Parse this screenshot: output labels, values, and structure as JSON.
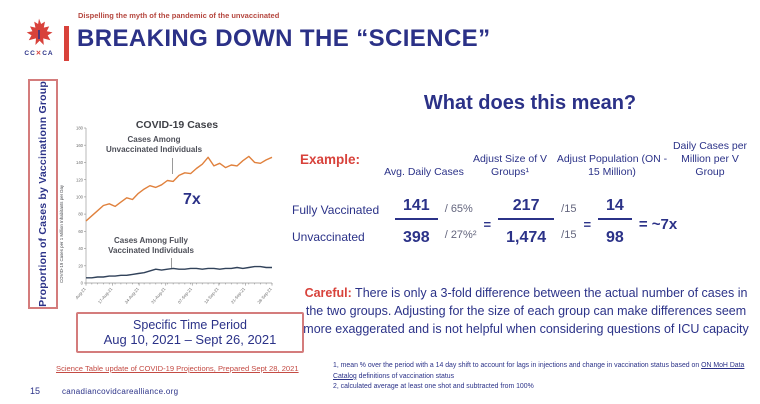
{
  "slide": {
    "tagline": "Dispelling the myth of the pandemic of the unvaccinated",
    "title": "BREAKING DOWN THE “SCIENCE”",
    "page_number": "15",
    "footer_url": "canadiancovidcarealliance.org"
  },
  "logo": {
    "text_left": "CC",
    "text_x": "✕",
    "text_right": "CA"
  },
  "left_panel": {
    "side_label": "Proportion of Cases by Vaccinationn Group",
    "time_period_line1": "Specific Time Period",
    "time_period_line2": "Aug 10, 2021 – Sept 26, 2021",
    "source_link": "Science Table update of COVID-19 Projections, Prepared Sept 28, 2021"
  },
  "chart_data": {
    "type": "line",
    "title": "COVID-19 Cases",
    "ylabel": "COVID-19 Cases per 1 Million Inhabitants per Day",
    "annotation": "7x",
    "x_ticks": [
      "10-Aug-21",
      "17-Aug-21",
      "24-Aug-21",
      "31-Aug-21",
      "07-Sep-21",
      "14-Sep-21",
      "21-Sep-21",
      "28-Sep-21"
    ],
    "y_ticks": [
      0,
      20,
      40,
      60,
      80,
      100,
      120,
      140,
      160,
      180
    ],
    "ylim": [
      0,
      180
    ],
    "grid": false,
    "series": [
      {
        "name": "Cases Among Unvaccinated Individuals",
        "color": "#e0813d",
        "values": [
          72,
          78,
          84,
          90,
          92,
          89,
          94,
          99,
          97,
          104,
          109,
          113,
          111,
          114,
          119,
          118,
          125,
          128,
          127,
          133,
          138,
          146,
          136,
          139,
          134,
          137,
          136,
          142,
          147,
          140,
          139,
          143,
          146
        ]
      },
      {
        "name": "Cases Among Fully Vaccinated Individuals",
        "color": "#31425a",
        "values": [
          6,
          6,
          7,
          7,
          8,
          8,
          9,
          9,
          10,
          11,
          12,
          14,
          16,
          15,
          16,
          17,
          16,
          16,
          17,
          17,
          16,
          17,
          17,
          16,
          17,
          17,
          18,
          17,
          18,
          19,
          19,
          18,
          18
        ]
      }
    ]
  },
  "right_panel": {
    "heading": "What does this mean?",
    "table": {
      "example_label": "Example:",
      "headers": [
        "Avg. Daily Cases",
        "Adjust Size of V Groups¹",
        "Adjust Population (ON - 15 Million)",
        "Daily Cases per Million per V Group"
      ],
      "row_labels": [
        "Fully Vaccinated",
        "Unvaccinated"
      ],
      "frac1": {
        "num": "141",
        "den": "398"
      },
      "adj1": {
        "top": "/ 65%",
        "bottom": "/ 27%²"
      },
      "eq": "=",
      "frac2": {
        "num": "217",
        "den": "1,474"
      },
      "adj2": {
        "top": "/15",
        "bottom": "/15"
      },
      "frac3": {
        "num": "14",
        "den": "98"
      },
      "result": "= ~7x"
    },
    "careful": {
      "label": "Careful:",
      "text": " There is only a 3-fold difference between the actual number of cases in the two groups. Adjusting for the size of each group can make differences seem more exaggerated and is not helpful when considering questions of ICU capacity"
    },
    "footnotes": {
      "fn1_pre": "1,  mean % over the period with a 14 day shift to account for lags in injections and change in vaccination status based on ",
      "fn1_link": "ON MoH Data Catalog",
      "fn1_post": " definitions of vaccination status",
      "fn2": "2, calculated average at least one shot and subtracted from 100%"
    }
  },
  "colors": {
    "navy_text": "#2b3288",
    "title_navy": "#2b3187",
    "accent_red": "#d8423b",
    "box_border_red": "#d47c7c",
    "orange_line": "#e0813d",
    "navy_line": "#31425a"
  }
}
